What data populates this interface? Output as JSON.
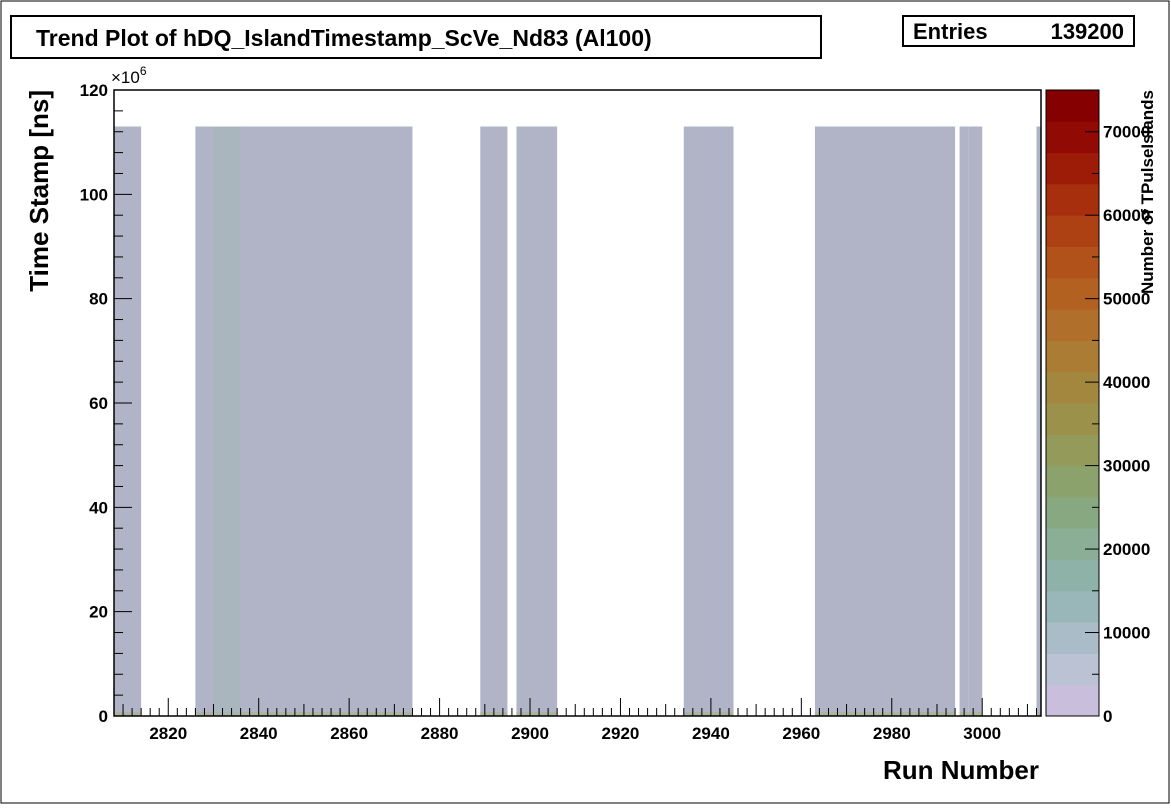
{
  "title": "Trend Plot of hDQ_IslandTimestamp_ScVe_Nd83 (Al100)",
  "stats": {
    "label": "Entries",
    "value": "139200"
  },
  "colors": {
    "background": "#ffffff",
    "frame": "#000000",
    "fill": "#b0b4c6"
  },
  "colorbar": {
    "label": "Number of TPulseIslands",
    "min": 0,
    "max": 75000,
    "tick_labels": [
      "0",
      "10000",
      "20000",
      "30000",
      "40000",
      "50000",
      "60000",
      "70000"
    ],
    "tick_values": [
      0,
      10000,
      20000,
      30000,
      40000,
      50000,
      60000,
      70000
    ],
    "palette": [
      "#c9bfdc",
      "#bac2d3",
      "#a9bcc7",
      "#99b6b9",
      "#8fb2a8",
      "#8aae96",
      "#88a881",
      "#8ca26c",
      "#939a5a",
      "#9c914b",
      "#a4873f",
      "#ab7c34",
      "#b06f2a",
      "#b26121",
      "#b1521a",
      "#ad4114",
      "#a72f0e",
      "#9d1c08",
      "#910a03",
      "#850000"
    ]
  },
  "chart_data": {
    "type": "heatmap",
    "title": "Trend Plot of hDQ_IslandTimestamp_ScVe_Nd83 (Al100)",
    "xlabel": "Run Number",
    "ylabel": "Time Stamp [ns]",
    "y_exponent_label": "×10",
    "y_exponent_power": "6",
    "xlim": [
      2808,
      3013
    ],
    "ylim": [
      0,
      120
    ],
    "x_ticks": [
      2820,
      2840,
      2860,
      2880,
      2900,
      2920,
      2940,
      2960,
      2980,
      3000
    ],
    "x_tick_labels": [
      "2820",
      "2840",
      "2860",
      "2880",
      "2900",
      "2920",
      "2940",
      "2960",
      "2980",
      "3000"
    ],
    "y_ticks": [
      0,
      20,
      40,
      60,
      80,
      100,
      120
    ],
    "y_tick_labels": [
      "0",
      "20",
      "40",
      "60",
      "80",
      "100",
      "120"
    ],
    "z_label": "Number of TPulseIslands",
    "entries": 139200,
    "filled_run_ranges": [
      {
        "x_start": 2808,
        "x_end": 2814,
        "y_max": 113
      },
      {
        "x_start": 2826,
        "x_end": 2874,
        "y_max": 113
      },
      {
        "x_start": 2889,
        "x_end": 2895,
        "y_max": 113
      },
      {
        "x_start": 2897,
        "x_end": 2906,
        "y_max": 113
      },
      {
        "x_start": 2934,
        "x_end": 2945,
        "y_max": 113
      },
      {
        "x_start": 2963,
        "x_end": 2994,
        "y_max": 113
      },
      {
        "x_start": 2995,
        "x_end": 2997,
        "y_max": 113
      },
      {
        "x_start": 2997,
        "x_end": 3000,
        "y_max": 113
      },
      {
        "x_start": 3012,
        "x_end": 3013,
        "y_max": 113
      }
    ],
    "denser_run_range": {
      "x_start": 2830,
      "x_end": 2836
    }
  }
}
